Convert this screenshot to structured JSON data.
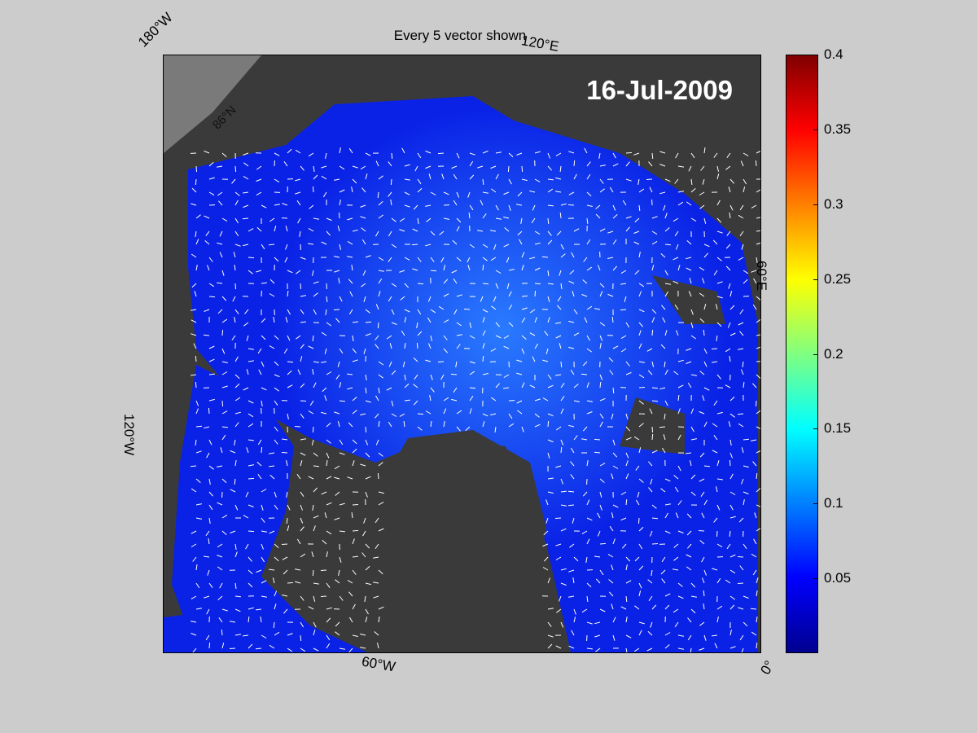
{
  "title": "Every 5 vector shown",
  "date_label": "16-Jul-2009",
  "map_labels": {
    "lon_180w": "180°W",
    "lon_120e": "120°E",
    "lon_60e": "60°E",
    "lon_120w": "120°W",
    "lon_60w": "60°W",
    "lon_0": "0°",
    "lat_86n": "86°N"
  },
  "colorbar": {
    "min": 0,
    "max": 0.4,
    "ticks": [
      "0.4",
      "0.35",
      "0.3",
      "0.25",
      "0.2",
      "0.15",
      "0.1",
      "0.05"
    ],
    "colormap": "jet"
  },
  "colors": {
    "background": "#cccccc",
    "land": "#3a3a3a",
    "outside": "#808080",
    "ice_low": "#0000ff",
    "arrows": "#ffffff"
  }
}
